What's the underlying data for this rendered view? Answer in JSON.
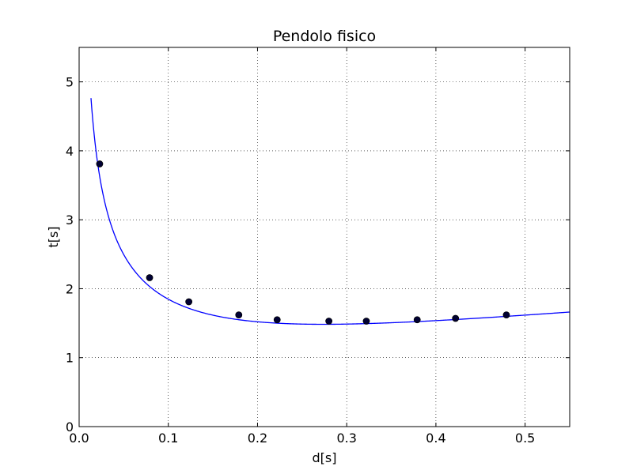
{
  "chart_data": {
    "type": "scatter",
    "title": "Pendolo fisico",
    "xlabel": "d[s]",
    "ylabel": "t[s]",
    "xlim": [
      0.0,
      0.55
    ],
    "ylim": [
      0,
      5.5
    ],
    "xticks": [
      0.0,
      0.1,
      0.2,
      0.3,
      0.4,
      0.5
    ],
    "xtick_labels": [
      "0.0",
      "0.1",
      "0.2",
      "0.3",
      "0.4",
      "0.5"
    ],
    "yticks": [
      0,
      1,
      2,
      3,
      4,
      5
    ],
    "ytick_labels": [
      "0",
      "1",
      "2",
      "3",
      "4",
      "5"
    ],
    "grid": true,
    "series": [
      {
        "kind": "points",
        "color": "#000033",
        "x": [
          0.023,
          0.079,
          0.123,
          0.179,
          0.222,
          0.28,
          0.322,
          0.379,
          0.422,
          0.479
        ],
        "y": [
          3.81,
          2.16,
          1.81,
          1.62,
          1.55,
          1.53,
          1.53,
          1.55,
          1.57,
          1.62
        ]
      },
      {
        "kind": "fit-curve",
        "color": "#0000ff",
        "model": "T = 2*pi*sqrt((k^2 + d^2) / (g*d))",
        "params": {
          "k": 0.2736,
          "g": 9.81
        },
        "x_start": 0.0133,
        "x_end": 0.55
      }
    ]
  }
}
